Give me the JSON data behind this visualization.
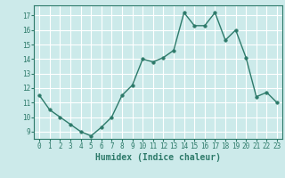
{
  "x": [
    0,
    1,
    2,
    3,
    4,
    5,
    6,
    7,
    8,
    9,
    10,
    11,
    12,
    13,
    14,
    15,
    16,
    17,
    18,
    19,
    20,
    21,
    22,
    23
  ],
  "y": [
    11.5,
    10.5,
    10.0,
    9.5,
    9.0,
    8.7,
    9.3,
    10.0,
    11.5,
    12.2,
    14.0,
    13.8,
    14.1,
    14.6,
    17.2,
    16.3,
    16.3,
    17.2,
    15.3,
    16.0,
    14.1,
    11.4,
    11.7,
    11.0
  ],
  "line_color": "#2d7a6a",
  "marker": "o",
  "markersize": 2.5,
  "linewidth": 1.0,
  "xlabel": "Humidex (Indice chaleur)",
  "xlabel_fontsize": 7,
  "xlim": [
    -0.5,
    23.5
  ],
  "ylim": [
    8.5,
    17.7
  ],
  "yticks": [
    9,
    10,
    11,
    12,
    13,
    14,
    15,
    16,
    17
  ],
  "xticks": [
    0,
    1,
    2,
    3,
    4,
    5,
    6,
    7,
    8,
    9,
    10,
    11,
    12,
    13,
    14,
    15,
    16,
    17,
    18,
    19,
    20,
    21,
    22,
    23
  ],
  "tick_fontsize": 5.5,
  "bg_color": "#cceaea",
  "grid_color": "#ffffff",
  "axes_color": "#2d7a6a",
  "spine_color": "#2d7a6a"
}
